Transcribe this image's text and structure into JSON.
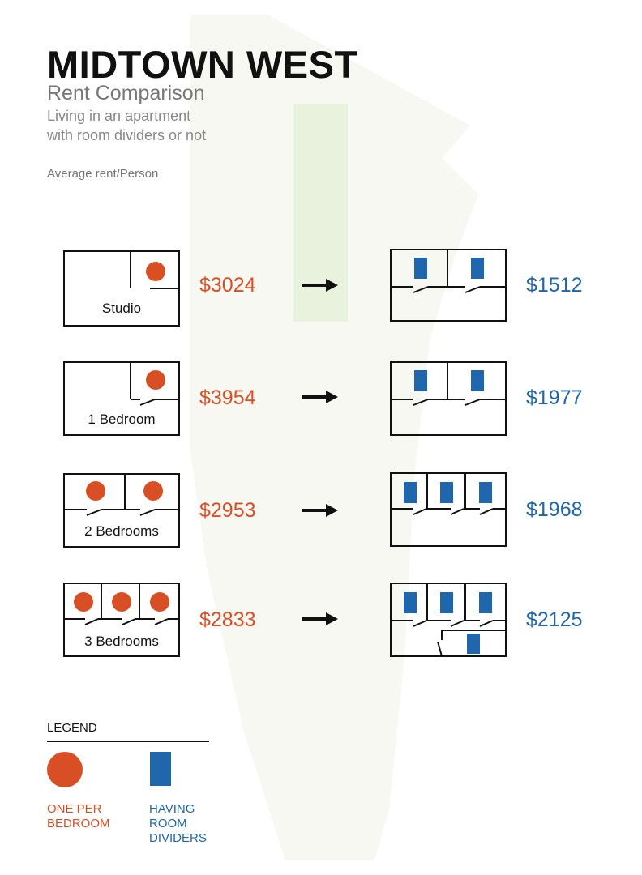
{
  "header": {
    "title": "MIDTOWN WEST",
    "subtitle": "Rent Comparison",
    "description_lines": [
      "Living in an apartment",
      "with room dividers or not"
    ],
    "metric_label": "Average rent/Person"
  },
  "colors": {
    "one_per_bedroom": "#d84f26",
    "room_dividers": "#1f66ac",
    "map_shape": "#f7f8f2",
    "highlight": "#e9f2dc",
    "outline": "#111111"
  },
  "rows": [
    {
      "name": "Studio",
      "label": "Studio",
      "people_before": 1,
      "people_after": 2,
      "rent_before": "$3024",
      "rent_after": "$1512"
    },
    {
      "name": "1-bedroom",
      "label": "1 Bedroom",
      "people_before": 1,
      "people_after": 2,
      "rent_before": "$3954",
      "rent_after": "$1977"
    },
    {
      "name": "2-bedrooms",
      "label": "2 Bedrooms",
      "people_before": 2,
      "people_after": 3,
      "rent_before": "$2953",
      "rent_after": "$1968"
    },
    {
      "name": "3-bedrooms",
      "label": "3 Bedrooms",
      "people_before": 3,
      "people_after": 4,
      "rent_before": "$2833",
      "rent_after": "$2125"
    }
  ],
  "legend": {
    "title": "LEGEND",
    "items": [
      {
        "symbol": "orange-circle",
        "text_lines": [
          "ONE PER",
          "BEDROOM"
        ]
      },
      {
        "symbol": "blue-rectangle",
        "text_lines": [
          "HAVING",
          "ROOM",
          "DIVIDERS"
        ]
      }
    ]
  }
}
